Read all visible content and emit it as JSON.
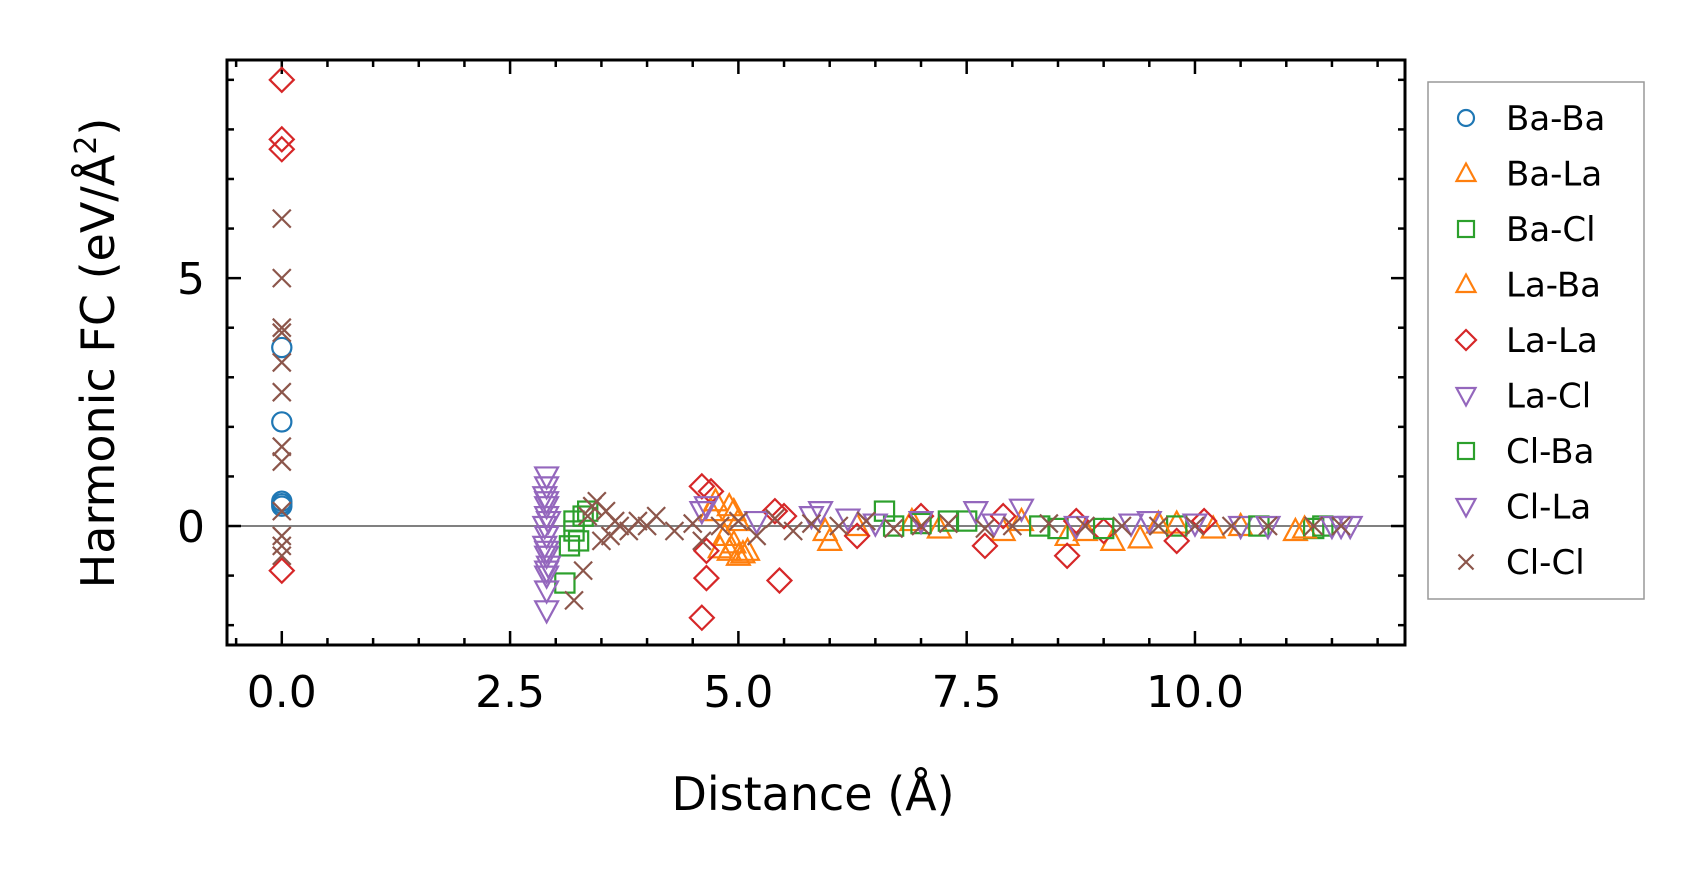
{
  "chart_data": {
    "type": "scatter",
    "xlabel": "Distance (Å)",
    "ylabel_main": "Harmonic FC (eV/Å",
    "ylabel_sup": "2",
    "ylabel_close": ")",
    "xlim": [
      -0.6,
      12.3
    ],
    "ylim": [
      -2.4,
      9.4
    ],
    "x_ticks": [
      {
        "value": 0.0,
        "label": "0.0"
      },
      {
        "value": 2.5,
        "label": "2.5"
      },
      {
        "value": 5.0,
        "label": "5.0"
      },
      {
        "value": 7.5,
        "label": "7.5"
      },
      {
        "value": 10.0,
        "label": "10.0"
      }
    ],
    "y_ticks": [
      {
        "value": 0,
        "label": "0"
      },
      {
        "value": 5,
        "label": "5"
      }
    ],
    "x_minor_step": 0.5,
    "y_minor_step": 1,
    "zero_line": true,
    "legend_position": "outside-right",
    "series": [
      {
        "name": "Ba-Ba",
        "marker": "circle",
        "color": "#1f77b4",
        "points": [
          [
            0,
            3.6
          ],
          [
            0,
            2.1
          ],
          [
            0,
            0.5
          ],
          [
            0,
            0.45
          ],
          [
            0,
            0.4
          ]
        ]
      },
      {
        "name": "Ba-La",
        "marker": "triangle-up",
        "color": "#ff7f0e",
        "points": [
          [
            4.75,
            0.5
          ],
          [
            4.9,
            0.4
          ],
          [
            4.95,
            0.3
          ],
          [
            5.0,
            0.1
          ],
          [
            4.85,
            -0.2
          ],
          [
            4.9,
            -0.5
          ],
          [
            5.05,
            -0.55
          ],
          [
            5.0,
            -0.6
          ],
          [
            4.8,
            -0.45
          ],
          [
            6.0,
            -0.3
          ],
          [
            6.9,
            0.1
          ],
          [
            7.9,
            -0.1
          ],
          [
            8.6,
            -0.2
          ],
          [
            9.1,
            -0.3
          ],
          [
            9.4,
            -0.25
          ],
          [
            9.8,
            0.05
          ],
          [
            10.5,
            0.0
          ],
          [
            11.1,
            -0.1
          ]
        ]
      },
      {
        "name": "Ba-Cl",
        "marker": "square",
        "color": "#2ca02c",
        "points": [
          [
            3.1,
            -1.15
          ],
          [
            3.15,
            -0.4
          ],
          [
            3.2,
            -0.1
          ],
          [
            3.3,
            0.2
          ],
          [
            3.35,
            0.3
          ],
          [
            6.6,
            0.3
          ],
          [
            7.5,
            0.1
          ],
          [
            8.5,
            -0.05
          ],
          [
            9.8,
            0.0
          ],
          [
            11.3,
            -0.05
          ]
        ]
      },
      {
        "name": "La-Ba",
        "marker": "triangle-up",
        "color": "#ff7f0e",
        "points": [
          [
            4.7,
            0.3
          ],
          [
            4.95,
            -0.35
          ],
          [
            5.1,
            -0.5
          ],
          [
            5.95,
            -0.1
          ],
          [
            6.3,
            0.0
          ],
          [
            7.2,
            -0.05
          ],
          [
            8.1,
            0.1
          ],
          [
            8.8,
            -0.1
          ],
          [
            9.6,
            0.05
          ],
          [
            10.2,
            -0.05
          ],
          [
            11.2,
            -0.05
          ]
        ]
      },
      {
        "name": "La-La",
        "marker": "diamond",
        "color": "#d62728",
        "points": [
          [
            0,
            9.0
          ],
          [
            0,
            7.8
          ],
          [
            0,
            7.6
          ],
          [
            0,
            -0.9
          ],
          [
            4.6,
            0.8
          ],
          [
            4.7,
            0.7
          ],
          [
            4.65,
            -0.5
          ],
          [
            4.65,
            -1.05
          ],
          [
            4.6,
            -1.85
          ],
          [
            5.45,
            -1.1
          ],
          [
            5.4,
            0.3
          ],
          [
            5.5,
            0.2
          ],
          [
            6.3,
            -0.2
          ],
          [
            7.0,
            0.2
          ],
          [
            7.7,
            -0.4
          ],
          [
            7.9,
            0.2
          ],
          [
            8.6,
            -0.6
          ],
          [
            8.7,
            0.1
          ],
          [
            9.0,
            -0.1
          ],
          [
            9.8,
            -0.3
          ],
          [
            10.1,
            0.1
          ]
        ]
      },
      {
        "name": "La-Cl",
        "marker": "triangle-down",
        "color": "#9467bd",
        "points": [
          [
            2.9,
            1.0
          ],
          [
            2.9,
            0.8
          ],
          [
            2.88,
            0.6
          ],
          [
            2.9,
            0.4
          ],
          [
            2.9,
            0.2
          ],
          [
            2.88,
            0.0
          ],
          [
            2.9,
            -0.2
          ],
          [
            2.88,
            -0.4
          ],
          [
            2.9,
            -0.6
          ],
          [
            2.92,
            -0.8
          ],
          [
            2.9,
            -1.0
          ],
          [
            2.9,
            -1.3
          ],
          [
            2.9,
            -1.7
          ],
          [
            4.65,
            0.4
          ],
          [
            5.9,
            0.3
          ],
          [
            6.2,
            0.15
          ],
          [
            7.6,
            0.3
          ],
          [
            8.1,
            0.35
          ],
          [
            9.3,
            0.05
          ],
          [
            10.5,
            0.0
          ],
          [
            11.7,
            0.0
          ]
        ]
      },
      {
        "name": "Cl-Ba",
        "marker": "square",
        "color": "#2ca02c",
        "points": [
          [
            3.2,
            0.1
          ],
          [
            3.25,
            -0.3
          ],
          [
            6.7,
            0.0
          ],
          [
            7.0,
            0.05
          ],
          [
            7.3,
            0.1
          ],
          [
            8.3,
            0.0
          ],
          [
            9.0,
            -0.05
          ],
          [
            10.7,
            0.0
          ],
          [
            11.4,
            0.0
          ]
        ]
      },
      {
        "name": "Cl-La",
        "marker": "triangle-down",
        "color": "#9467bd",
        "points": [
          [
            2.9,
            0.5
          ],
          [
            2.92,
            0.1
          ],
          [
            2.9,
            -0.5
          ],
          [
            2.9,
            -0.9
          ],
          [
            4.6,
            0.3
          ],
          [
            5.2,
            0.1
          ],
          [
            5.8,
            0.2
          ],
          [
            6.5,
            0.05
          ],
          [
            7.0,
            0.1
          ],
          [
            7.8,
            0.05
          ],
          [
            8.7,
            0.0
          ],
          [
            9.5,
            0.1
          ],
          [
            10.0,
            0.05
          ],
          [
            10.8,
            0.0
          ],
          [
            11.5,
            0.0
          ],
          [
            11.6,
            0.0
          ]
        ]
      },
      {
        "name": "Cl-Cl",
        "marker": "x",
        "color": "#8c564b",
        "points": [
          [
            0,
            6.2
          ],
          [
            0,
            5.0
          ],
          [
            0,
            4.0
          ],
          [
            0,
            3.9
          ],
          [
            0,
            3.3
          ],
          [
            0,
            2.7
          ],
          [
            0,
            1.6
          ],
          [
            0,
            1.3
          ],
          [
            0,
            0.3
          ],
          [
            0,
            -0.2
          ],
          [
            0,
            -0.4
          ],
          [
            0,
            -0.6
          ],
          [
            3.2,
            -1.5
          ],
          [
            3.3,
            -0.9
          ],
          [
            3.35,
            0.2
          ],
          [
            3.4,
            0.4
          ],
          [
            3.45,
            0.5
          ],
          [
            3.5,
            -0.3
          ],
          [
            3.55,
            0.3
          ],
          [
            3.6,
            -0.2
          ],
          [
            3.65,
            0.1
          ],
          [
            3.7,
            0.0
          ],
          [
            3.8,
            -0.1
          ],
          [
            3.9,
            0.1
          ],
          [
            4.0,
            0.0
          ],
          [
            4.1,
            0.2
          ],
          [
            4.3,
            -0.1
          ],
          [
            4.5,
            0.05
          ],
          [
            4.6,
            -0.3
          ],
          [
            4.8,
            0.0
          ],
          [
            5.0,
            0.1
          ],
          [
            5.2,
            -0.2
          ],
          [
            5.4,
            0.15
          ],
          [
            5.6,
            -0.1
          ],
          [
            5.8,
            0.05
          ],
          [
            6.1,
            0.0
          ],
          [
            6.4,
            0.1
          ],
          [
            6.7,
            -0.05
          ],
          [
            7.0,
            0.0
          ],
          [
            7.3,
            0.05
          ],
          [
            7.7,
            -0.05
          ],
          [
            8.0,
            0.0
          ],
          [
            8.4,
            0.05
          ],
          [
            8.8,
            0.0
          ],
          [
            9.2,
            0.0
          ],
          [
            9.6,
            0.0
          ],
          [
            10.0,
            0.0
          ],
          [
            10.4,
            0.0
          ],
          [
            10.8,
            0.0
          ],
          [
            11.3,
            0.0
          ],
          [
            11.6,
            0.0
          ]
        ]
      }
    ]
  }
}
